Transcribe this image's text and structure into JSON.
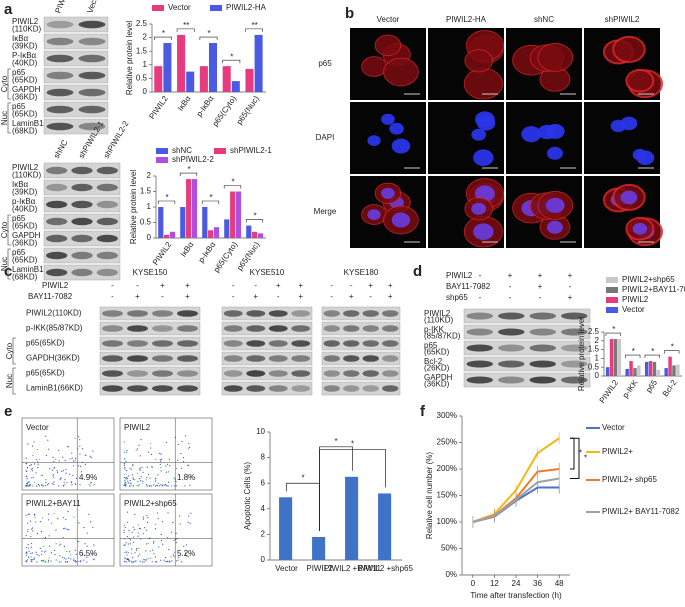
{
  "panel_letters": [
    "a",
    "b",
    "c",
    "d",
    "e",
    "f"
  ],
  "blot_a1": {
    "columns": [
      "PIWIL2-HA",
      "Vector"
    ],
    "rows": [
      {
        "label": "PIWIL2",
        "size": "(110KD)"
      },
      {
        "label": "IκBα",
        "size": "(39KD)"
      },
      {
        "label": "P-IκBα",
        "size": "(40KD)"
      },
      {
        "label": "p65",
        "size": "(65KD)"
      },
      {
        "label": "GAPDH",
        "size": "(36KD)"
      },
      {
        "label": "p65",
        "size": "(65KD)"
      },
      {
        "label": "LaminB1",
        "size": "(68KD)"
      }
    ],
    "groups": [
      "Cyto",
      "Nuc"
    ]
  },
  "blot_a2": {
    "columns": [
      "shNC",
      "shPIWIL2-1",
      "shPIWIL2-2"
    ],
    "rows": [
      {
        "label": "PIWIL2",
        "size": "(110KD)"
      },
      {
        "label": "IκBα",
        "size": "(39KD)"
      },
      {
        "label": "p-IκBα",
        "size": "(40KD)"
      },
      {
        "label": "p65",
        "size": "(65KD)"
      },
      {
        "label": "GAPDH",
        "size": "(36KD)"
      },
      {
        "label": "p65",
        "size": "(65KD)"
      },
      {
        "label": "LaminB1",
        "size": "(68KD)"
      }
    ],
    "groups": [
      "Cyto",
      "Nuc"
    ]
  },
  "imaging_b": {
    "columns": [
      "Vector",
      "PIWIL2-HA",
      "shNC",
      "shPIWIL2"
    ],
    "rows": [
      "p65",
      "DAPI",
      "Merge"
    ]
  },
  "blot_c": {
    "cell_lines": [
      "KYSE150",
      "KYSE510",
      "KYSE180"
    ],
    "treatments": [
      {
        "label": "PIWIL2",
        "signs": [
          "-",
          "-",
          "+",
          "+"
        ]
      },
      {
        "label": "BAY11-7082",
        "signs": [
          "-",
          "+",
          "-",
          "+"
        ]
      }
    ],
    "rows": [
      {
        "label": "PIWIL2(110KD)"
      },
      {
        "label": "p-IKK(85/87KD)"
      },
      {
        "label": "p65(65KD)"
      },
      {
        "label": "GAPDH(36KD)"
      },
      {
        "label": "p65(65KD)"
      },
      {
        "label": "LaminB1(66KD)"
      }
    ],
    "groups": [
      "Cyto",
      "Nuc"
    ]
  },
  "blot_d": {
    "treatments": [
      {
        "label": "PIWIL2",
        "signs": [
          "-",
          "+",
          "+",
          "+"
        ]
      },
      {
        "label": "BAY11-7082",
        "signs": [
          "-",
          "-",
          "+",
          "-"
        ]
      },
      {
        "label": "shp65",
        "signs": [
          "-",
          "-",
          "-",
          "+"
        ]
      }
    ],
    "rows": [
      {
        "label": "PIWIL2",
        "size": "(110KD)"
      },
      {
        "label": "p-IKK",
        "size": "(85/87KD)"
      },
      {
        "label": "p65",
        "size": "(65KD)"
      },
      {
        "label": "Bcl-2",
        "size": "(26KD)"
      },
      {
        "label": "GAPDH",
        "size": "(36KD)"
      }
    ]
  },
  "flow_e": [
    {
      "name": "Vector",
      "percent": "4.9%"
    },
    {
      "name": "PIWIL2",
      "percent": "1.8%"
    },
    {
      "name": "PIWIL2+BAY11",
      "percent": "6.5%"
    },
    {
      "name": "PIWIL2+shp65",
      "percent": "5.2%"
    }
  ],
  "chart_data": [
    {
      "type": "bar",
      "ylabel": "Relative protein level",
      "categories": [
        "PIWIL2",
        "IκBα",
        "p-IκBα",
        "p65(Cyto)",
        "p65(Nuc)"
      ],
      "series": [
        {
          "name": "Vector",
          "color": "#e83a7e",
          "values": [
            0.95,
            2.1,
            0.95,
            0.95,
            0.85
          ]
        },
        {
          "name": "PIWIL2-HA",
          "color": "#4a5ae2",
          "values": [
            1.8,
            0.75,
            1.8,
            0.4,
            2.1
          ]
        }
      ],
      "ylim": [
        0,
        2.5
      ],
      "yticks": [
        0,
        0.5,
        1,
        1.5,
        2,
        2.5
      ],
      "annotations": [
        "*",
        "**",
        "*",
        "*",
        "**"
      ],
      "legend": "top",
      "rotate_labels": true
    },
    {
      "type": "bar",
      "ylabel": "Relative protein level",
      "categories": [
        "PIWIL2",
        "IκBα",
        "p-IκBα",
        "p65(Cyto)",
        "p65(Nuc)"
      ],
      "series": [
        {
          "name": "shNC",
          "color": "#4a5ae2",
          "values": [
            1.0,
            1.0,
            1.0,
            0.6,
            0.4
          ]
        },
        {
          "name": "shPIWIL2-1",
          "color": "#e83a7e",
          "values": [
            0.1,
            1.9,
            0.25,
            1.5,
            0.2
          ]
        },
        {
          "name": "shPIWIL2-2",
          "color": "#b04ee0",
          "values": [
            0.2,
            1.9,
            0.35,
            1.5,
            0.15
          ]
        }
      ],
      "ylim": [
        0,
        2
      ],
      "yticks": [
        0,
        0.5,
        1,
        1.5,
        2
      ],
      "annotations": [
        "*",
        "*",
        "*",
        "*",
        "*"
      ],
      "legend": "top",
      "rotate_labels": true
    },
    {
      "type": "bar",
      "ylabel": "Relative protein level",
      "categories": [
        "PIWIL2",
        "p-IKK",
        "p65",
        "Bcl-2"
      ],
      "series": [
        {
          "name": "Vector",
          "color": "#4a5ae2",
          "values": [
            0.5,
            0.4,
            0.8,
            0.45
          ]
        },
        {
          "name": "PIWIL2",
          "color": "#e83a7e",
          "values": [
            2.1,
            0.85,
            0.85,
            1.1
          ]
        },
        {
          "name": "PIWIL2+BAY11-7082",
          "color": "#777777",
          "values": [
            2.1,
            0.45,
            0.8,
            0.6
          ]
        },
        {
          "name": "PIWIL2+shp65",
          "color": "#c8c8c8",
          "values": [
            2.1,
            0.6,
            0.35,
            0.65
          ]
        }
      ],
      "ylim": [
        0,
        2.5
      ],
      "yticks": [
        0,
        0.5,
        1,
        1.5,
        2,
        2.5
      ],
      "annotations": [
        "*",
        "*",
        "*",
        "*"
      ],
      "legend": "top-right",
      "rotate_labels": true
    },
    {
      "type": "bar",
      "ylabel": "Apoptotic Cells (%)",
      "categories": [
        "Vector",
        "PIWIL2",
        "PIWIL2 +BAY11",
        "PIWIL2 +shp65"
      ],
      "values": [
        4.9,
        1.8,
        6.5,
        5.2
      ],
      "color": "#3f73c8",
      "ylim": [
        0,
        10
      ],
      "yticks": [
        0,
        2,
        4,
        6,
        8,
        10
      ],
      "significance": [
        "*",
        "*",
        "*"
      ],
      "rotate_labels": false
    },
    {
      "type": "line",
      "xlabel": "Time after transfection (h)",
      "ylabel": "Relative cell number (%)",
      "x": [
        0,
        12,
        24,
        36,
        48
      ],
      "xlim": [
        -6,
        54
      ],
      "xticks": [
        0,
        12,
        24,
        36,
        48
      ],
      "ylim": [
        0,
        300
      ],
      "yticks": [
        {
          "value": 0,
          "label": "0%"
        },
        {
          "value": 50,
          "label": "50%"
        },
        {
          "value": 100,
          "label": "100%"
        },
        {
          "value": 150,
          "label": "150%"
        },
        {
          "value": 200,
          "label": "200%"
        },
        {
          "value": 250,
          "label": "250%"
        },
        {
          "value": 300,
          "label": "300%"
        }
      ],
      "series": [
        {
          "name": "Vector",
          "color": "#4a72d0",
          "values": [
            100,
            110,
            140,
            165,
            165
          ]
        },
        {
          "name": "PIWIL2+",
          "color": "#f2b817",
          "values": [
            100,
            115,
            160,
            230,
            258
          ]
        },
        {
          "name": "PIWIL2+ shp65",
          "color": "#ee7a2a",
          "values": [
            100,
            112,
            145,
            195,
            200
          ]
        },
        {
          "name": "PIWIL2+ BAY11-7082",
          "color": "#a0a0a0",
          "values": [
            100,
            111,
            142,
            175,
            182
          ]
        }
      ],
      "significance": [
        "*",
        "*"
      ],
      "legend": "right"
    }
  ]
}
